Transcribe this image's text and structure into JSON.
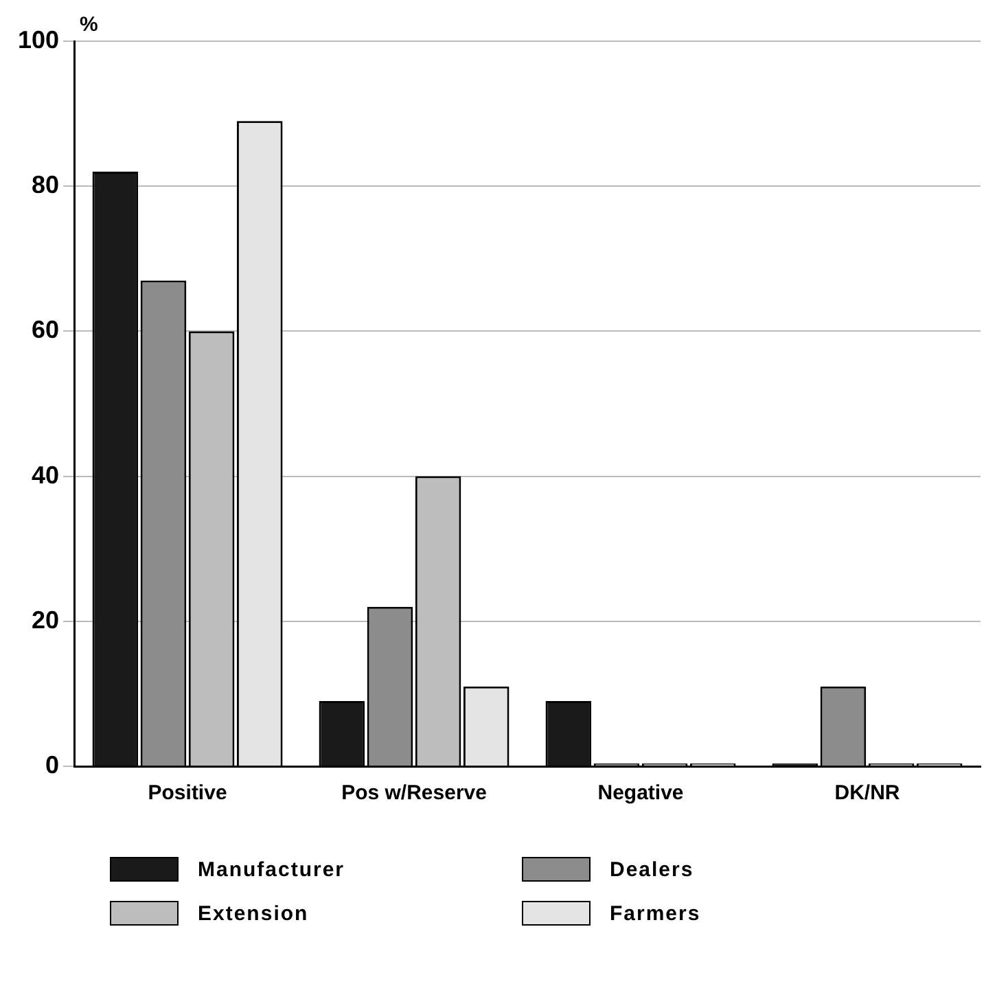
{
  "chart_data": {
    "type": "bar",
    "ylabel": "%",
    "categories": [
      "Positive",
      "Pos w/Reserve",
      "Negative",
      "DK/NR"
    ],
    "series": [
      {
        "name": "Manufacturer",
        "color": "#1a1a1a",
        "values": [
          82,
          9,
          9,
          0
        ]
      },
      {
        "name": "Dealers",
        "color": "#8c8c8c",
        "values": [
          67,
          22,
          0,
          11
        ]
      },
      {
        "name": "Extension",
        "color": "#bdbdbd",
        "values": [
          60,
          40,
          0,
          0
        ]
      },
      {
        "name": "Farmers",
        "color": "#e4e4e4",
        "values": [
          89,
          11,
          0,
          0
        ]
      }
    ],
    "ylim": [
      0,
      100
    ],
    "yticks": [
      0,
      20,
      40,
      60,
      80,
      100
    ],
    "grid": "y",
    "legend": "bottom"
  }
}
